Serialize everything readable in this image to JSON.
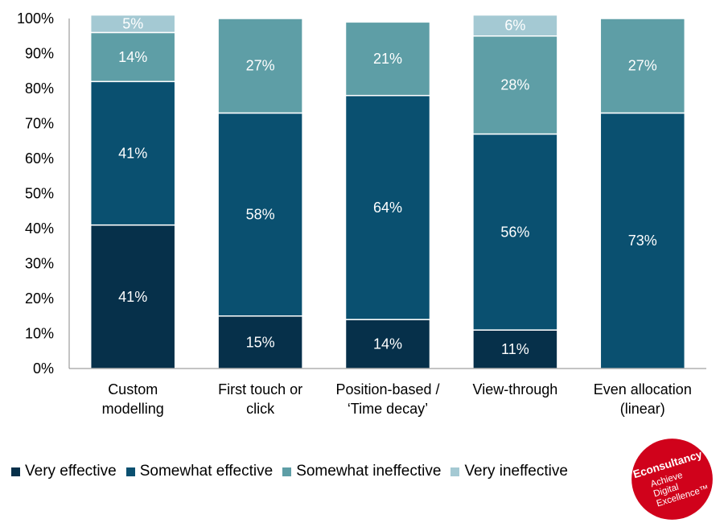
{
  "chart_data": {
    "type": "bar",
    "stacked": true,
    "categories": [
      [
        "Custom",
        "modelling"
      ],
      [
        "First touch or",
        "click"
      ],
      [
        "Position-based /",
        "‘Time decay’"
      ],
      [
        "View-through"
      ],
      [
        "Even allocation",
        "(linear)"
      ]
    ],
    "series": [
      {
        "name": "Very effective",
        "color": "#06304a",
        "values": [
          41,
          15,
          14,
          11,
          0
        ]
      },
      {
        "name": "Somewhat effective",
        "color": "#0a5070",
        "values": [
          41,
          58,
          64,
          56,
          73
        ]
      },
      {
        "name": "Somewhat ineffective",
        "color": "#5e9ea6",
        "values": [
          14,
          27,
          21,
          28,
          27
        ]
      },
      {
        "name": "Very ineffective",
        "color": "#a4c9d3",
        "values": [
          5,
          0,
          0,
          6,
          0
        ]
      }
    ],
    "ylim": [
      0,
      100
    ],
    "yticks": [
      "0%",
      "10%",
      "20%",
      "30%",
      "40%",
      "50%",
      "60%",
      "70%",
      "80%",
      "90%",
      "100%"
    ],
    "grid": false,
    "legend": "bottom"
  },
  "logo": {
    "brand": "Econsultancy",
    "tagline": [
      "Achieve",
      "Digital",
      "Excellence™"
    ],
    "color": "#d0021b"
  }
}
